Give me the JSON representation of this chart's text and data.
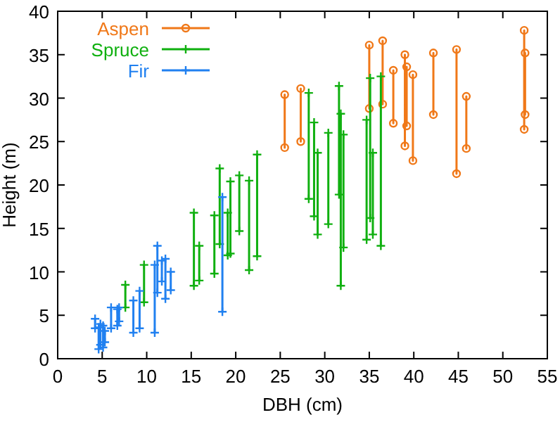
{
  "chart_data": {
    "type": "line",
    "xlabel": "DBH (cm)",
    "ylabel": "Height (m)",
    "xlim": [
      0,
      55
    ],
    "ylim": [
      0,
      40
    ],
    "xticks": [
      0,
      5,
      10,
      15,
      20,
      25,
      30,
      35,
      40,
      45,
      50,
      55
    ],
    "yticks": [
      0,
      5,
      10,
      15,
      20,
      25,
      30,
      35,
      40
    ],
    "grid": false,
    "legend": "top left",
    "line_style": "solid",
    "series": [
      {
        "name": "Aspen",
        "color": "#f07818",
        "marker": "circle",
        "x": [
          25.5,
          25.5,
          null,
          27.3,
          27.3,
          null,
          35.0,
          35.0,
          null,
          36.5,
          36.5,
          null,
          37.7,
          37.7,
          null,
          39.0,
          39.0,
          null,
          39.2,
          39.2,
          null,
          39.9,
          39.9,
          null,
          42.2,
          42.2,
          null,
          44.8,
          44.8,
          null,
          45.9,
          45.9,
          null,
          52.4,
          52.4,
          null,
          52.5,
          52.5
        ],
        "values": [
          24.3,
          30.4,
          null,
          25.0,
          31.1,
          null,
          28.8,
          36.1,
          null,
          29.3,
          36.6,
          null,
          27.1,
          33.2,
          null,
          24.5,
          35.0,
          null,
          26.8,
          33.6,
          null,
          22.8,
          32.7,
          null,
          28.1,
          35.2,
          null,
          21.3,
          35.6,
          null,
          24.2,
          30.2,
          null,
          26.4,
          37.8,
          null,
          28.1,
          35.2
        ]
      },
      {
        "name": "Spruce",
        "color": "#10b010",
        "marker": "cross",
        "x": [
          7.6,
          7.6,
          null,
          9.7,
          9.7,
          null,
          15.3,
          15.3,
          null,
          15.9,
          15.9,
          null,
          17.6,
          17.6,
          null,
          18.2,
          18.2,
          null,
          19.1,
          19.1,
          null,
          19.4,
          19.4,
          null,
          20.4,
          20.4,
          null,
          21.5,
          21.5,
          null,
          22.4,
          22.4,
          null,
          28.2,
          28.2,
          null,
          28.8,
          28.8,
          null,
          29.2,
          29.2,
          null,
          30.4,
          30.4,
          null,
          31.6,
          31.6,
          null,
          31.8,
          31.8,
          null,
          32.1,
          32.1,
          null,
          34.7,
          34.7,
          null,
          35.1,
          35.1,
          null,
          35.4,
          35.4,
          null,
          36.3,
          36.3
        ],
        "values": [
          5.9,
          8.5,
          null,
          6.5,
          10.8,
          null,
          8.4,
          16.8,
          null,
          9.0,
          13.0,
          null,
          9.8,
          16.5,
          null,
          13.2,
          21.9,
          null,
          11.9,
          16.8,
          null,
          12.1,
          20.4,
          null,
          14.7,
          21.1,
          null,
          10.2,
          20.5,
          null,
          11.8,
          23.5,
          null,
          18.4,
          30.6,
          null,
          16.4,
          27.2,
          null,
          14.3,
          23.7,
          null,
          15.5,
          26.0,
          null,
          18.9,
          31.4,
          null,
          8.4,
          28.2,
          null,
          12.8,
          25.8,
          null,
          13.7,
          27.5,
          null,
          16.2,
          32.3,
          null,
          14.3,
          23.7,
          null,
          13.0,
          32.5
        ]
      },
      {
        "name": "Fir",
        "color": "#2080f0",
        "marker": "cross",
        "x": [
          4.2,
          4.2,
          null,
          4.6,
          4.6,
          null,
          4.8,
          4.8,
          null,
          5.1,
          5.1,
          null,
          5.3,
          5.3,
          null,
          6.0,
          6.0,
          null,
          6.7,
          6.7,
          null,
          6.9,
          6.9,
          null,
          8.5,
          8.5,
          null,
          9.2,
          9.2,
          null,
          10.9,
          10.9,
          null,
          11.2,
          11.2,
          null,
          11.7,
          11.7,
          null,
          12.1,
          12.1,
          null,
          12.7,
          12.7,
          null,
          18.5,
          18.5
        ],
        "values": [
          3.5,
          4.6,
          null,
          1.1,
          3.6,
          null,
          1.6,
          4.0,
          null,
          1.3,
          3.8,
          null,
          1.9,
          3.2,
          null,
          3.5,
          5.9,
          null,
          3.8,
          5.7,
          null,
          4.3,
          5.9,
          null,
          3.0,
          6.7,
          null,
          3.5,
          7.8,
          null,
          3.0,
          10.8,
          null,
          7.6,
          13.0,
          null,
          8.9,
          11.3,
          null,
          6.9,
          11.5,
          null,
          7.9,
          10.0,
          null,
          5.4,
          18.6
        ]
      }
    ]
  }
}
